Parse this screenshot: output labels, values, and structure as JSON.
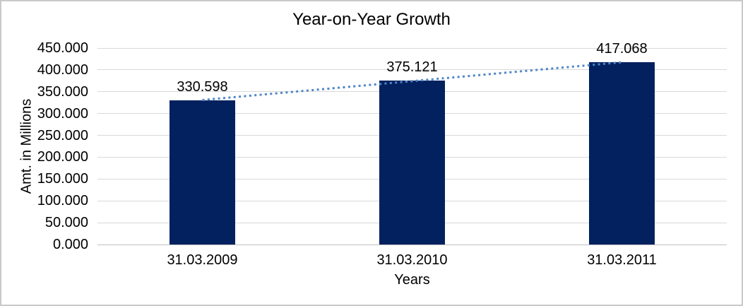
{
  "chart_data": {
    "type": "bar",
    "title": "Year-on-Year Growth",
    "xlabel": "Years",
    "ylabel": "Amt. in Millions",
    "categories": [
      "31.03.2009",
      "31.03.2010",
      "31.03.2011"
    ],
    "values": [
      330.598,
      375.121,
      417.068
    ],
    "value_labels": [
      "330.598",
      "375.121",
      "417.068"
    ],
    "ytick_values": [
      0,
      50,
      100,
      150,
      200,
      250,
      300,
      350,
      400,
      450
    ],
    "ytick_labels": [
      "0.000",
      "50.000",
      "100.000",
      "150.000",
      "200.000",
      "250.000",
      "300.000",
      "350.000",
      "400.000",
      "450.000"
    ],
    "ylim": [
      0,
      450
    ],
    "grid": true,
    "legend": "none",
    "trendline": {
      "type": "linear",
      "style": "dotted"
    },
    "colors": {
      "bar": "#03215F",
      "trendline": "#4E86C8",
      "gridline": "#D9D9D9",
      "axis_line": "#BFBFBF",
      "text": "#000000",
      "frame_border": "#C9C9C9"
    }
  }
}
